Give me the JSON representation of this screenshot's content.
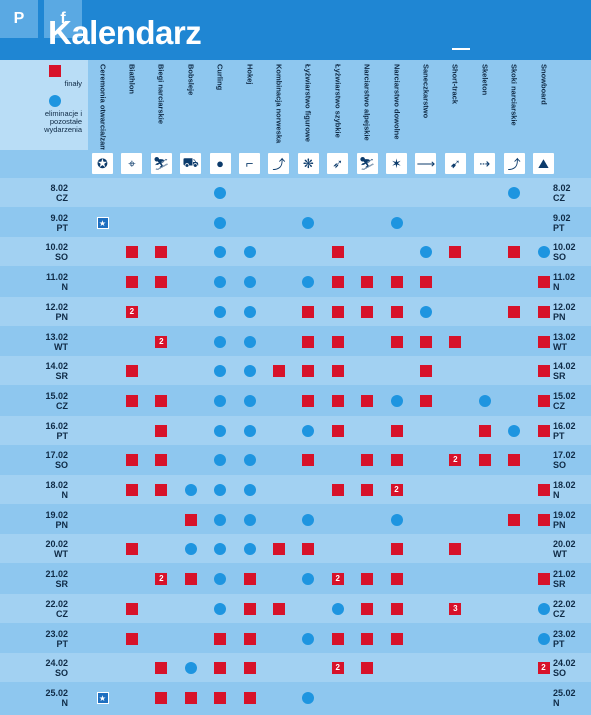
{
  "social": {
    "pin_label": "P",
    "fb_label": "f"
  },
  "title": "Kalendarz",
  "legend": {
    "finals_label": "finały",
    "other_label": "eliminacje i pozostałe wydarzenia"
  },
  "columns": [
    {
      "label": "Ceremonia otwarcia/zamknięcia",
      "icon": "ceremony-icon"
    },
    {
      "label": "Biathlon",
      "icon": "biathlon-icon"
    },
    {
      "label": "Biegi narciarskie",
      "icon": "cross-country-icon"
    },
    {
      "label": "Bobsleje",
      "icon": "bobsleigh-icon"
    },
    {
      "label": "Curling",
      "icon": "curling-icon"
    },
    {
      "label": "Hokej",
      "icon": "hockey-icon"
    },
    {
      "label": "Kombinacja norweska",
      "icon": "nordic-combined-icon"
    },
    {
      "label": "Łyżwiarstwo figurowe",
      "icon": "figure-skating-icon"
    },
    {
      "label": "Łyżwiarstwo szybkie",
      "icon": "speed-skating-icon"
    },
    {
      "label": "Narciarstwo alpejskie",
      "icon": "alpine-skiing-icon"
    },
    {
      "label": "Narciarstwo dowolne",
      "icon": "freestyle-icon"
    },
    {
      "label": "Saneczkarstwo",
      "icon": "luge-icon"
    },
    {
      "label": "Short-track",
      "icon": "short-track-icon"
    },
    {
      "label": "Skeleton",
      "icon": "skeleton-icon"
    },
    {
      "label": "Skoki narciarskie",
      "icon": "ski-jumping-icon"
    },
    {
      "label": "Snowboard",
      "icon": "snowboard-icon"
    }
  ],
  "rows": [
    {
      "date": "8.02",
      "day": "CZ",
      "cells": [
        "",
        "",
        "",
        "",
        "c",
        "",
        "",
        "",
        "",
        "",
        "",
        "",
        "",
        "",
        "c",
        ""
      ]
    },
    {
      "date": "9.02",
      "day": "PT",
      "cells": [
        "*",
        "",
        "",
        "",
        "c",
        "",
        "",
        "c",
        "",
        "",
        "c",
        "",
        "",
        "",
        "",
        ""
      ]
    },
    {
      "date": "10.02",
      "day": "SO",
      "cells": [
        "",
        "s",
        "s",
        "",
        "c",
        "c",
        "",
        "",
        "s",
        "",
        "",
        "c",
        "s",
        "",
        "s",
        "c"
      ]
    },
    {
      "date": "11.02",
      "day": "N",
      "cells": [
        "",
        "s",
        "s",
        "",
        "c",
        "c",
        "",
        "c",
        "s",
        "s",
        "s",
        "s",
        "",
        "",
        "",
        "s"
      ]
    },
    {
      "date": "12.02",
      "day": "PN",
      "cells": [
        "",
        "2",
        "",
        "",
        "c",
        "c",
        "",
        "s",
        "s",
        "s",
        "s",
        "c",
        "",
        "",
        "s",
        "s"
      ]
    },
    {
      "date": "13.02",
      "day": "WT",
      "cells": [
        "",
        "",
        "2",
        "",
        "c",
        "c",
        "",
        "s",
        "s",
        "",
        "s",
        "s",
        "s",
        "",
        "",
        "s"
      ]
    },
    {
      "date": "14.02",
      "day": "SR",
      "cells": [
        "",
        "s",
        "",
        "",
        "c",
        "c",
        "s",
        "s",
        "s",
        "",
        "",
        "s",
        "",
        "",
        "",
        "s"
      ]
    },
    {
      "date": "15.02",
      "day": "CZ",
      "cells": [
        "",
        "s",
        "s",
        "",
        "c",
        "c",
        "",
        "s",
        "s",
        "s",
        "c",
        "s",
        "",
        "c",
        "",
        "s"
      ]
    },
    {
      "date": "16.02",
      "day": "PT",
      "cells": [
        "",
        "",
        "s",
        "",
        "c",
        "c",
        "",
        "c",
        "s",
        "",
        "s",
        "",
        "",
        "s",
        "c",
        "s"
      ]
    },
    {
      "date": "17.02",
      "day": "SO",
      "cells": [
        "",
        "s",
        "s",
        "",
        "c",
        "c",
        "",
        "s",
        "",
        "s",
        "s",
        "",
        "2",
        "s",
        "s",
        ""
      ]
    },
    {
      "date": "18.02",
      "day": "N",
      "cells": [
        "",
        "s",
        "s",
        "c",
        "c",
        "c",
        "",
        "",
        "s",
        "s",
        "2",
        "",
        "",
        "",
        "",
        "s"
      ]
    },
    {
      "date": "19.02",
      "day": "PN",
      "cells": [
        "",
        "",
        "",
        "s",
        "c",
        "c",
        "",
        "c",
        "",
        "",
        "c",
        "",
        "",
        "",
        "s",
        "s"
      ]
    },
    {
      "date": "20.02",
      "day": "WT",
      "cells": [
        "",
        "s",
        "",
        "c",
        "c",
        "c",
        "s",
        "s",
        "",
        "",
        "s",
        "",
        "s",
        "",
        "",
        ""
      ]
    },
    {
      "date": "21.02",
      "day": "SR",
      "cells": [
        "",
        "",
        "2",
        "s",
        "c",
        "s",
        "",
        "c",
        "2",
        "s",
        "s",
        "",
        "",
        "",
        "",
        "s"
      ]
    },
    {
      "date": "22.02",
      "day": "CZ",
      "cells": [
        "",
        "s",
        "",
        "",
        "c",
        "s",
        "s",
        "",
        "c",
        "s",
        "s",
        "",
        "3",
        "",
        "",
        "c"
      ]
    },
    {
      "date": "23.02",
      "day": "PT",
      "cells": [
        "",
        "s",
        "",
        "",
        "s",
        "s",
        "",
        "c",
        "s",
        "s",
        "s",
        "",
        "",
        "",
        "",
        "c"
      ]
    },
    {
      "date": "24.02",
      "day": "SO",
      "cells": [
        "",
        "",
        "s",
        "c",
        "s",
        "s",
        "",
        "",
        "2",
        "s",
        "",
        "",
        "",
        "",
        "",
        "2"
      ]
    },
    {
      "date": "25.02",
      "day": "N",
      "cells": [
        "*",
        "",
        "s",
        "s",
        "s",
        "s",
        "",
        "c",
        "",
        "",
        "",
        "",
        "",
        "",
        "",
        ""
      ]
    }
  ],
  "colors": {
    "final": "#d7122a",
    "other": "#1e95e0",
    "header": "#1f86d3"
  }
}
